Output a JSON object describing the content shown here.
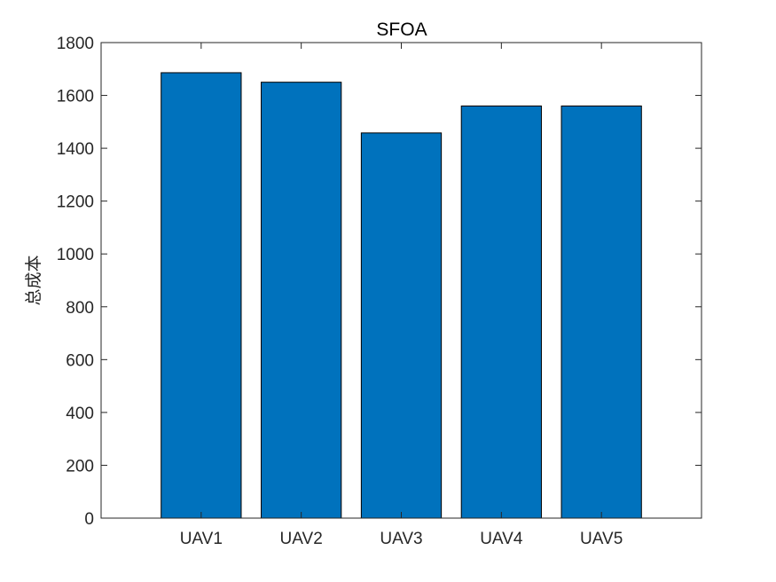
{
  "chart_data": {
    "type": "bar",
    "title": "SFOA",
    "xlabel": "",
    "ylabel": "总成本",
    "categories": [
      "UAV1",
      "UAV2",
      "UAV3",
      "UAV4",
      "UAV5"
    ],
    "values": [
      1686,
      1650,
      1458,
      1560,
      1560
    ],
    "ylim": [
      0,
      1800
    ],
    "yticks": [
      0,
      200,
      400,
      600,
      800,
      1000,
      1200,
      1400,
      1600,
      1800
    ],
    "grid": false,
    "bar_color": "#0072BD",
    "edge_color": "#000000"
  }
}
